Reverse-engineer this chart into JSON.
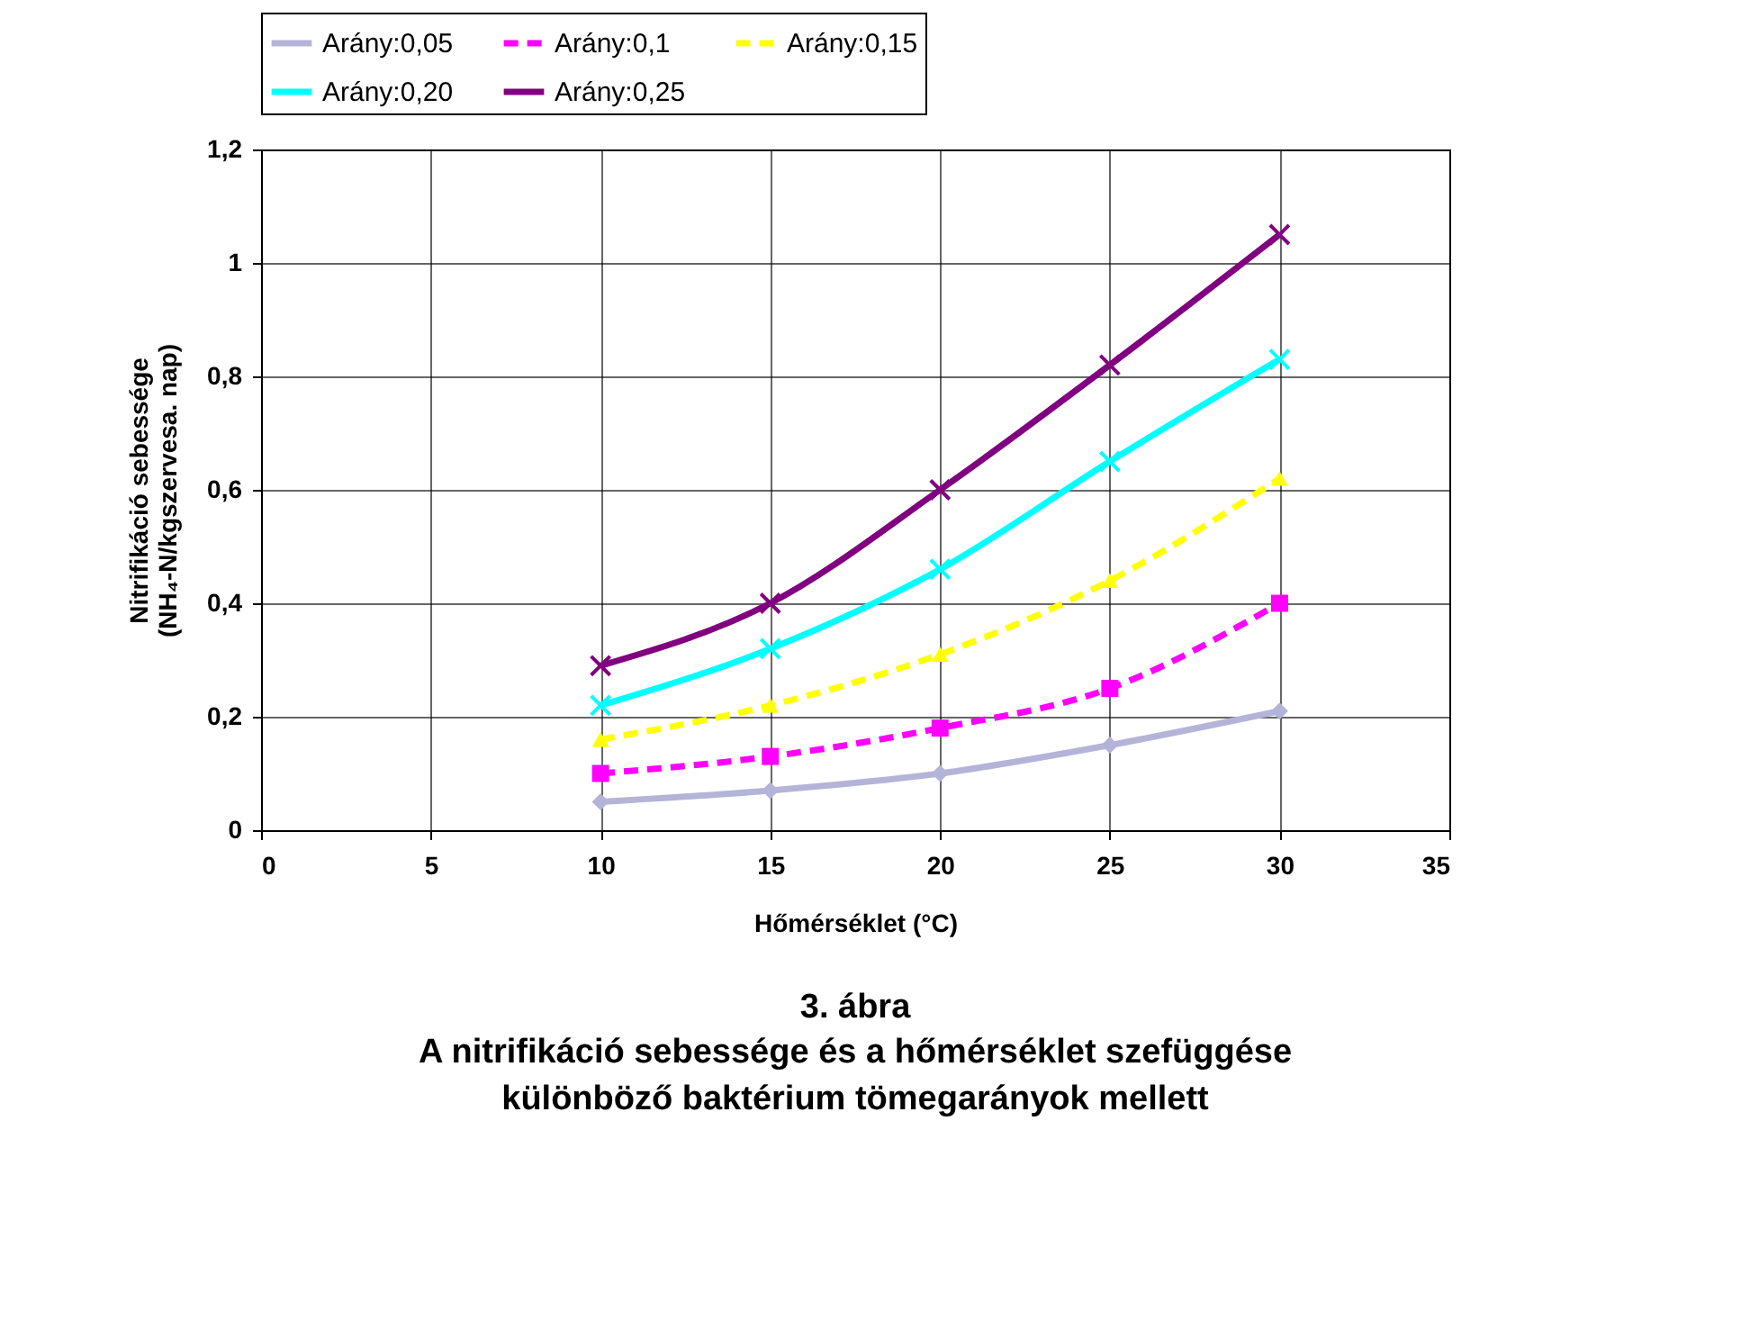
{
  "chart_data": {
    "type": "line",
    "title": "3. ábra",
    "subtitle": "A nitrifikáció sebessége és a hőmérséklet szefüggése\nkülönböző baktérium tömegarányok mellett",
    "xlabel": "Hőmérséklet (°C)",
    "ylabel": "Nitrifikáció sebessége\n(NH₄-N/kgszervesa. nap)",
    "x": [
      10,
      15,
      20,
      25,
      30
    ],
    "series": [
      {
        "name": "Arány:0,05",
        "color": "#b4b4d8",
        "marker": "diamond",
        "line_style": "solid",
        "values": [
          0.05,
          0.07,
          0.1,
          0.15,
          0.21
        ]
      },
      {
        "name": "Arány:0,1",
        "color": "#ff00ff",
        "marker": "square",
        "line_style": "dashed",
        "values": [
          0.1,
          0.13,
          0.18,
          0.25,
          0.4
        ]
      },
      {
        "name": "Arány:0,15",
        "color": "#ffff00",
        "marker": "triangle",
        "line_style": "dashed",
        "values": [
          0.16,
          0.22,
          0.31,
          0.44,
          0.62
        ]
      },
      {
        "name": "Arány:0,20",
        "color": "#00ffff",
        "marker": "cross",
        "line_style": "solid",
        "values": [
          0.22,
          0.32,
          0.46,
          0.65,
          0.83
        ]
      },
      {
        "name": "Arány:0,25",
        "color": "#800080",
        "marker": "cross",
        "line_style": "solid",
        "values": [
          0.29,
          0.4,
          0.6,
          0.82,
          1.05
        ]
      }
    ],
    "xlim": [
      0,
      35
    ],
    "xticks": [
      0,
      5,
      10,
      15,
      20,
      25,
      30,
      35
    ],
    "ylim": [
      0,
      1.2
    ],
    "yticks": [
      0,
      {
        "value": 0.2,
        "label": "0,2"
      },
      {
        "value": 0.4,
        "label": "0,4"
      },
      {
        "value": 0.6,
        "label": "0,6"
      },
      {
        "value": 0.8,
        "label": "0,8"
      },
      1,
      {
        "value": 1.2,
        "label": "1,2"
      }
    ],
    "grid": true,
    "legend": "top"
  }
}
